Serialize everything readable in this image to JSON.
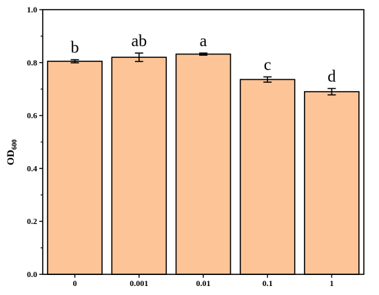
{
  "chart_data": {
    "type": "bar",
    "categories": [
      "0",
      "0.001",
      "0.01",
      "0.1",
      "1"
    ],
    "values": [
      0.805,
      0.82,
      0.832,
      0.736,
      0.69
    ],
    "errors": [
      0.006,
      0.016,
      0.004,
      0.01,
      0.012
    ],
    "significance_labels": [
      "b",
      "ab",
      "a",
      "c",
      "d"
    ],
    "title": "",
    "xlabel": "",
    "ylabel_main": "OD",
    "ylabel_sub": "600",
    "ylim": [
      0,
      1.0
    ],
    "yticks": [
      "0.0",
      "0.2",
      "0.4",
      "0.6",
      "0.8",
      "1.0"
    ],
    "bar_color": "#FDC597",
    "grid": false
  }
}
